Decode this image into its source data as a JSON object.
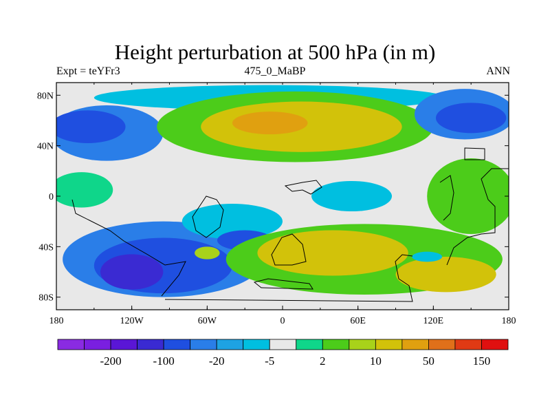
{
  "title": "Height perturbation at 500 hPa (in m)",
  "subtitle_left": "Expt = teYFr3",
  "subtitle_center": "475_0_MaBP",
  "subtitle_right": "ANN",
  "colors": {
    "background_level": "#e8e8e8",
    "ocean_outline": "#000000"
  },
  "map": {
    "x_ticks": [
      {
        "value": -180,
        "label": "180"
      },
      {
        "value": -120,
        "label": "120W"
      },
      {
        "value": -60,
        "label": "60W"
      },
      {
        "value": 0,
        "label": "0"
      },
      {
        "value": 60,
        "label": "60E"
      },
      {
        "value": 120,
        "label": "120E"
      },
      {
        "value": 180,
        "label": "180"
      }
    ],
    "y_ticks": [
      {
        "value": 80,
        "label": "80N"
      },
      {
        "value": 40,
        "label": "40N"
      },
      {
        "value": 0,
        "label": "0"
      },
      {
        "value": -40,
        "label": "40S"
      },
      {
        "value": -80,
        "label": "80S"
      }
    ],
    "lon_range": [
      -180,
      180
    ],
    "lat_range": [
      -90,
      90
    ]
  },
  "colorbar": {
    "colors": [
      "#8a2be2",
      "#7a1fe0",
      "#5a16d6",
      "#3a2ad2",
      "#1f4fe0",
      "#2a7ee8",
      "#1ea2e3",
      "#00bfe0",
      "#e8e8e8",
      "#0fd68a",
      "#4ccc1a",
      "#a8d21a",
      "#d2c20a",
      "#e0a010",
      "#e0701a",
      "#e03a14",
      "#e01010"
    ],
    "labels": [
      {
        "after_index": 1,
        "text": "-200"
      },
      {
        "after_index": 3,
        "text": "-100"
      },
      {
        "after_index": 5,
        "text": "-20"
      },
      {
        "after_index": 7,
        "text": "-5"
      },
      {
        "after_index": 9,
        "text": "2"
      },
      {
        "after_index": 11,
        "text": "10"
      },
      {
        "after_index": 13,
        "text": "50"
      },
      {
        "after_index": 15,
        "text": "150"
      }
    ]
  },
  "regions": [
    {
      "name": "north-polar-lobe",
      "lon": -10,
      "lat": 78,
      "rlon": 140,
      "rlat": 10,
      "color": "#00bfe0"
    },
    {
      "name": "nw-blue-band",
      "lon": -140,
      "lat": 50,
      "rlon": 45,
      "rlat": 22,
      "color": "#2a7ee8"
    },
    {
      "name": "nw-blue-core",
      "lon": -155,
      "lat": 55,
      "rlon": 30,
      "rlat": 13,
      "color": "#1f4fe0"
    },
    {
      "name": "north-green-band",
      "lon": 10,
      "lat": 55,
      "rlon": 110,
      "rlat": 28,
      "color": "#4ccc1a"
    },
    {
      "name": "north-yellow-band",
      "lon": 15,
      "lat": 55,
      "rlon": 80,
      "rlat": 20,
      "color": "#d2c20a"
    },
    {
      "name": "north-orange-core",
      "lon": -10,
      "lat": 58,
      "rlon": 30,
      "rlat": 9,
      "color": "#e0a010"
    },
    {
      "name": "ne-blue-band",
      "lon": 145,
      "lat": 65,
      "rlon": 40,
      "rlat": 20,
      "color": "#2a7ee8"
    },
    {
      "name": "ne-blue-core",
      "lon": 150,
      "lat": 62,
      "rlon": 28,
      "rlat": 12,
      "color": "#1f4fe0"
    },
    {
      "name": "tropical-cyan-east",
      "lon": 55,
      "lat": 0,
      "rlon": 32,
      "rlat": 12,
      "color": "#00bfe0"
    },
    {
      "name": "tropical-green-east",
      "lon": 150,
      "lat": 0,
      "rlon": 35,
      "rlat": 30,
      "color": "#4ccc1a"
    },
    {
      "name": "tropical-green-west",
      "lon": -160,
      "lat": 5,
      "rlon": 25,
      "rlat": 14,
      "color": "#0fd68a"
    },
    {
      "name": "south-blue-band",
      "lon": -95,
      "lat": -50,
      "rlon": 80,
      "rlat": 30,
      "color": "#2a7ee8"
    },
    {
      "name": "south-blue-mid",
      "lon": -95,
      "lat": -55,
      "rlon": 55,
      "rlat": 22,
      "color": "#1f4fe0"
    },
    {
      "name": "south-dark-core",
      "lon": -120,
      "lat": -60,
      "rlon": 25,
      "rlat": 14,
      "color": "#3a2ad2"
    },
    {
      "name": "south-cyan-lobe",
      "lon": -40,
      "lat": -20,
      "rlon": 40,
      "rlat": 14,
      "color": "#00bfe0"
    },
    {
      "name": "south-blue-lobe",
      "lon": -30,
      "lat": -35,
      "rlon": 22,
      "rlat": 8,
      "color": "#1f4fe0"
    },
    {
      "name": "south-green-band",
      "lon": 65,
      "lat": -50,
      "rlon": 110,
      "rlat": 28,
      "color": "#4ccc1a"
    },
    {
      "name": "south-yellow-band",
      "lon": 40,
      "lat": -45,
      "rlon": 60,
      "rlat": 18,
      "color": "#d2c20a"
    },
    {
      "name": "south-yellow-east",
      "lon": 130,
      "lat": -62,
      "rlon": 40,
      "rlat": 14,
      "color": "#d2c20a"
    },
    {
      "name": "south-pacific-cyan",
      "lon": 115,
      "lat": -48,
      "rlon": 12,
      "rlat": 4,
      "color": "#00bfe0"
    },
    {
      "name": "southern-green-small",
      "lon": -60,
      "lat": -45,
      "rlon": 10,
      "rlat": 5,
      "color": "#a8d21a"
    }
  ]
}
